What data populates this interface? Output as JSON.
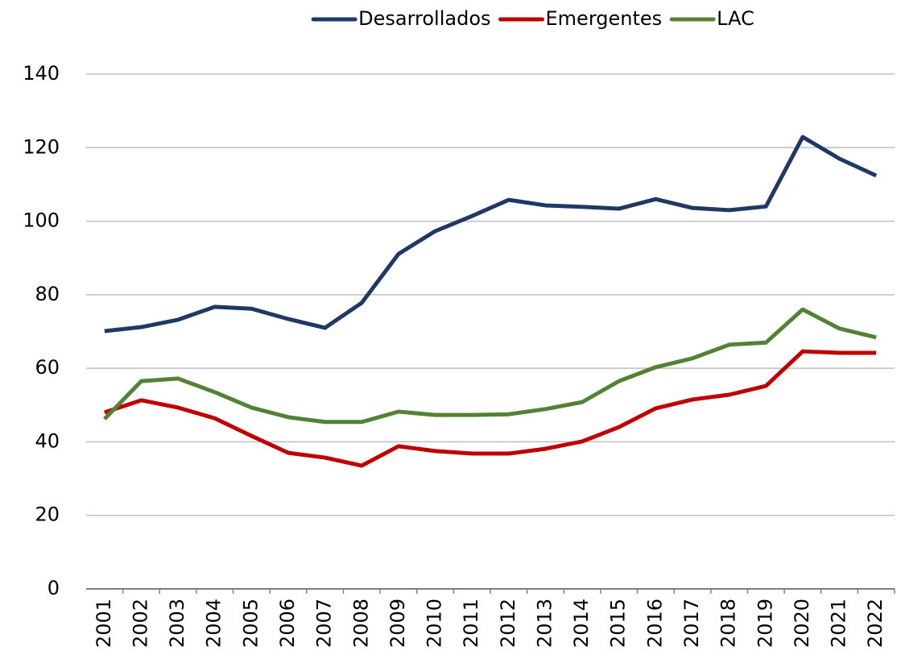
{
  "chart_data": {
    "type": "line",
    "categories": [
      "2001",
      "2002",
      "2003",
      "2004",
      "2005",
      "2006",
      "2007",
      "2008",
      "2009",
      "2010",
      "2011",
      "2012",
      "2013",
      "2014",
      "2015",
      "2016",
      "2017",
      "2018",
      "2019",
      "2020",
      "2021",
      "2022"
    ],
    "series": [
      {
        "name": "Desarrollados",
        "color": "#1f3864",
        "values": [
          70.1,
          71.2,
          73.2,
          76.7,
          76.2,
          73.4,
          71.0,
          77.8,
          91.1,
          97.3,
          101.4,
          105.8,
          104.3,
          103.9,
          103.4,
          106.0,
          103.6,
          103.0,
          104.0,
          122.9,
          117.0,
          112.4
        ]
      },
      {
        "name": "Emergentes",
        "color": "#c00000",
        "values": [
          48.0,
          51.3,
          49.3,
          46.4,
          41.6,
          37.0,
          35.7,
          33.5,
          38.8,
          37.5,
          36.8,
          36.8,
          38.1,
          40.1,
          44.0,
          49.1,
          51.5,
          52.8,
          55.2,
          64.6,
          64.2,
          64.2
        ]
      },
      {
        "name": "LAC",
        "color": "#548235",
        "values": [
          46.2,
          56.5,
          57.2,
          53.5,
          49.3,
          46.7,
          45.4,
          45.4,
          48.2,
          47.3,
          47.3,
          47.5,
          48.9,
          50.8,
          56.5,
          60.3,
          62.7,
          66.4,
          67.0,
          76.0,
          70.8,
          68.4
        ]
      }
    ],
    "ylim": [
      0,
      140
    ],
    "yticks": [
      0,
      20,
      40,
      60,
      80,
      100,
      120,
      140
    ],
    "grid": true,
    "legend": "top"
  }
}
